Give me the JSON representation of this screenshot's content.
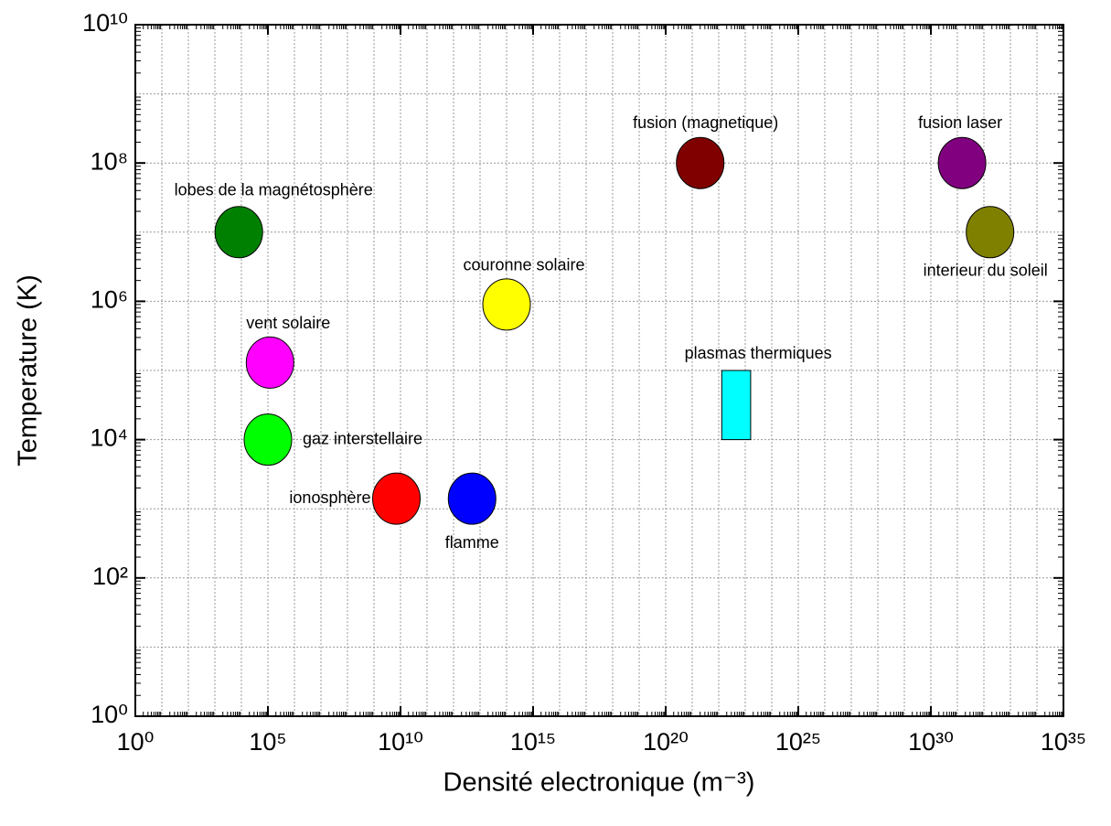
{
  "chart_data": {
    "type": "scatter",
    "xlabel": "Densité electronique (m⁻³)",
    "ylabel": "Temperature (K)",
    "xscale": "log",
    "yscale": "log",
    "grid": true,
    "xlim": [
      1,
      1e+35
    ],
    "xticks": [
      {
        "value": 1,
        "label": "10⁰"
      },
      {
        "value": 100000.0,
        "label": "10⁵"
      },
      {
        "value": 10000000000.0,
        "label": "10¹⁰"
      },
      {
        "value": 1000000000000000.0,
        "label": "10¹⁵"
      },
      {
        "value": 1e+20,
        "label": "10²⁰"
      },
      {
        "value": 1e+25,
        "label": "10²⁵"
      },
      {
        "value": 1e+30,
        "label": "10³⁰"
      },
      {
        "value": 1e+35,
        "label": "10³⁵"
      }
    ],
    "ylim": [
      1,
      10000000000.0
    ],
    "yticks": [
      {
        "value": 1,
        "label": "10⁰"
      },
      {
        "value": 100,
        "label": "10²"
      },
      {
        "value": 10000,
        "label": "10⁴"
      },
      {
        "value": 1000000,
        "label": "10⁶"
      },
      {
        "value": 100000000,
        "label": "10⁸"
      },
      {
        "value": 10000000000,
        "label": "10¹⁰"
      }
    ],
    "points": [
      {
        "label": "lobes de la magnétosphère",
        "x": 8000,
        "y": 10000000,
        "color": "#008000"
      },
      {
        "label": "vent solaire",
        "x": 120000,
        "y": 130000,
        "color": "#ff00ff"
      },
      {
        "label": "gaz interstellaire",
        "x": 100000,
        "y": 10000,
        "color": "#00ff00"
      },
      {
        "label": "ionosphère",
        "x": 7000000000,
        "y": 1400,
        "color": "#ff0000"
      },
      {
        "label": "flamme",
        "x": 5000000000000,
        "y": 1400,
        "color": "#0000ff"
      },
      {
        "label": "couronne solaire",
        "x": 100000000000000,
        "y": 900000,
        "color": "#ffff00"
      },
      {
        "label": "fusion (magnetique)",
        "x": 2e+21,
        "y": 100000000,
        "color": "#800000"
      },
      {
        "label": "fusion laser",
        "x": 1.5e+31,
        "y": 100000000,
        "color": "#800080"
      },
      {
        "label": "interieur du soleil",
        "x": 1.7e+32,
        "y": 10000000,
        "color": "#808000"
      }
    ],
    "regions": [
      {
        "label": "plasmas thermiques",
        "x": [
          1.3e+22,
          1.6e+23
        ],
        "y": [
          10000,
          100000
        ],
        "color": "#00ffff"
      }
    ]
  }
}
